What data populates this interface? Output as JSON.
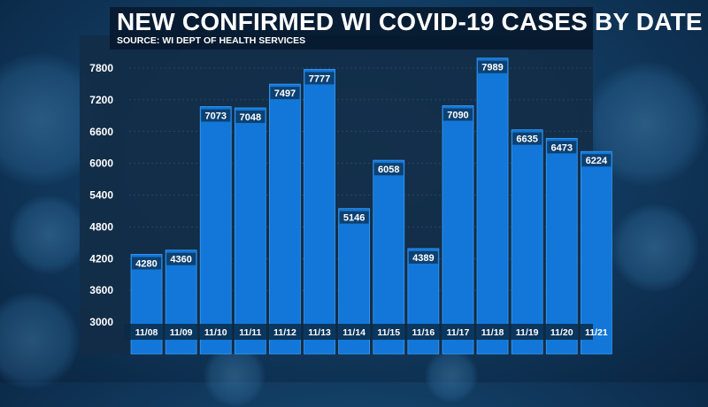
{
  "colors": {
    "bar": "#1277d8",
    "bar_edge": "#3a9bf2",
    "label_bg": "#0d3b66",
    "text": "#ffffff",
    "grid": "#5c7b96"
  },
  "chart_data": {
    "type": "bar",
    "title": "NEW CONFIRMED WI COVID-19 CASES BY DATE",
    "subtitle": "SOURCE: WI DEPT OF HEALTH SERVICES",
    "categories": [
      "11/08",
      "11/09",
      "11/10",
      "11/11",
      "11/12",
      "11/13",
      "11/14",
      "11/15",
      "11/16",
      "11/17",
      "11/18",
      "11/19",
      "11/20",
      "11/21"
    ],
    "values": [
      4280,
      4360,
      7073,
      7048,
      7497,
      7777,
      5146,
      6058,
      4389,
      7090,
      7989,
      6635,
      6473,
      6224
    ],
    "ylim": [
      2800,
      8200
    ],
    "yticks": [
      3000,
      3600,
      4200,
      4800,
      5400,
      6000,
      6600,
      7200,
      7800
    ],
    "grid": true,
    "data_labels": true
  }
}
